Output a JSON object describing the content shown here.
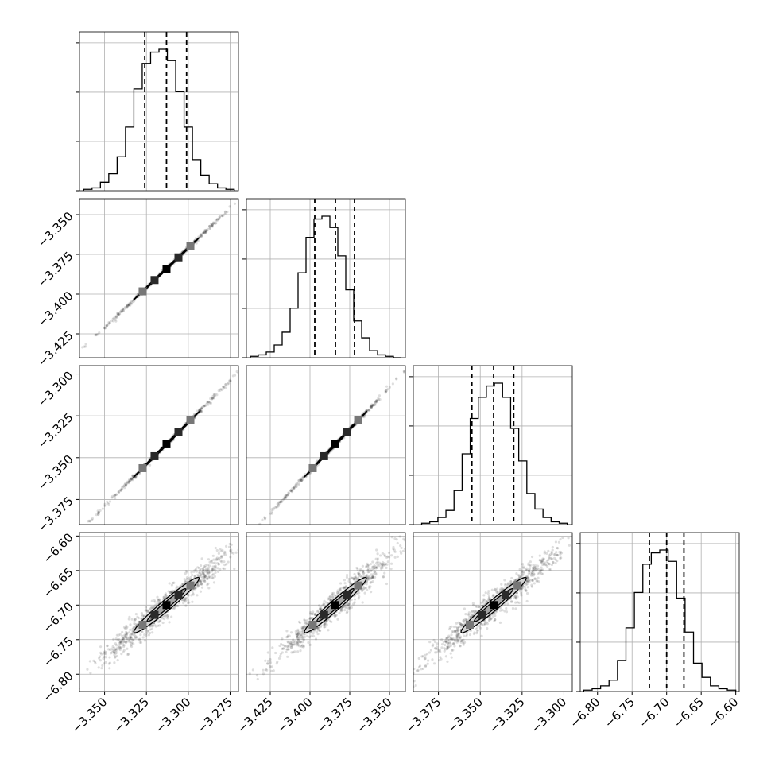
{
  "chart_data": {
    "type": "corner",
    "parameters": 4,
    "grid": true,
    "colors": {
      "lines": "#000000",
      "grid": "#b0b0b0",
      "points": "#000000"
    },
    "axes": [
      {
        "range": [
          -3.365,
          -3.27
        ],
        "ticks": [
          -3.35,
          -3.325,
          -3.3,
          -3.275
        ],
        "tick_labels": [
          "−3.350",
          "−3.325",
          "−3.300",
          "−3.275"
        ]
      },
      {
        "range": [
          -3.44,
          -3.34
        ],
        "ticks": [
          -3.425,
          -3.4,
          -3.375,
          -3.35
        ],
        "tick_labels": [
          "−3.425",
          "−3.400",
          "−3.375",
          "−3.350"
        ]
      },
      {
        "range": [
          -3.39,
          -3.295
        ],
        "ticks": [
          -3.375,
          -3.35,
          -3.325,
          -3.3
        ],
        "tick_labels": [
          "−3.375",
          "−3.350",
          "−3.325",
          "−3.300"
        ]
      },
      {
        "range": [
          -6.825,
          -6.595
        ],
        "ticks": [
          -6.8,
          -6.75,
          -6.7,
          -6.65,
          -6.6
        ],
        "tick_labels": [
          "−6.80",
          "−6.75",
          "−6.70",
          "−6.65",
          "−6.60"
        ]
      }
    ],
    "histograms": [
      {
        "bins": [
          -3.3625,
          -3.2725
        ],
        "counts": [
          1,
          2,
          6,
          12,
          24,
          45,
          72,
          90,
          98,
          100,
          92,
          70,
          45,
          22,
          11,
          5,
          2,
          1
        ],
        "quantiles": [
          -3.326,
          -3.313,
          -3.301
        ]
      },
      {
        "bins": [
          -3.4375,
          -3.3425
        ],
        "counts": [
          1,
          2,
          4,
          9,
          18,
          35,
          60,
          85,
          98,
          100,
          92,
          72,
          48,
          26,
          14,
          5,
          2,
          1,
          0
        ],
        "quantiles": [
          -3.397,
          -3.384,
          -3.372
        ]
      },
      {
        "bins": [
          -3.385,
          -3.298
        ],
        "counts": [
          1,
          2,
          5,
          10,
          24,
          50,
          75,
          90,
          98,
          100,
          90,
          68,
          45,
          22,
          11,
          5,
          2,
          1
        ],
        "quantiles": [
          -3.355,
          -3.342,
          -3.33
        ]
      },
      {
        "bins": [
          -6.82,
          -6.6
        ],
        "counts": [
          1,
          2,
          4,
          8,
          22,
          45,
          70,
          90,
          98,
          100,
          92,
          66,
          42,
          20,
          10,
          4,
          2,
          1
        ],
        "quantiles": [
          -6.725,
          -6.7,
          -6.675
        ]
      }
    ],
    "pairs": [
      {
        "row": 1,
        "col": 0,
        "center": [
          -3.313,
          -3.384
        ],
        "sigma": [
          0.0122,
          0.0122
        ],
        "rho": 0.9994
      },
      {
        "row": 2,
        "col": 0,
        "center": [
          -3.313,
          -3.342
        ],
        "sigma": [
          0.0122,
          0.0122
        ],
        "rho": 0.9994
      },
      {
        "row": 2,
        "col": 1,
        "center": [
          -3.384,
          -3.342
        ],
        "sigma": [
          0.0122,
          0.0122
        ],
        "rho": 0.9994
      },
      {
        "row": 3,
        "col": 0,
        "center": [
          -3.313,
          -6.7
        ],
        "sigma": [
          0.0122,
          0.025
        ],
        "rho": 0.97
      },
      {
        "row": 3,
        "col": 1,
        "center": [
          -3.384,
          -6.7
        ],
        "sigma": [
          0.0122,
          0.025
        ],
        "rho": 0.97
      },
      {
        "row": 3,
        "col": 2,
        "center": [
          -3.342,
          -6.7
        ],
        "sigma": [
          0.0122,
          0.025
        ],
        "rho": 0.97
      }
    ]
  }
}
